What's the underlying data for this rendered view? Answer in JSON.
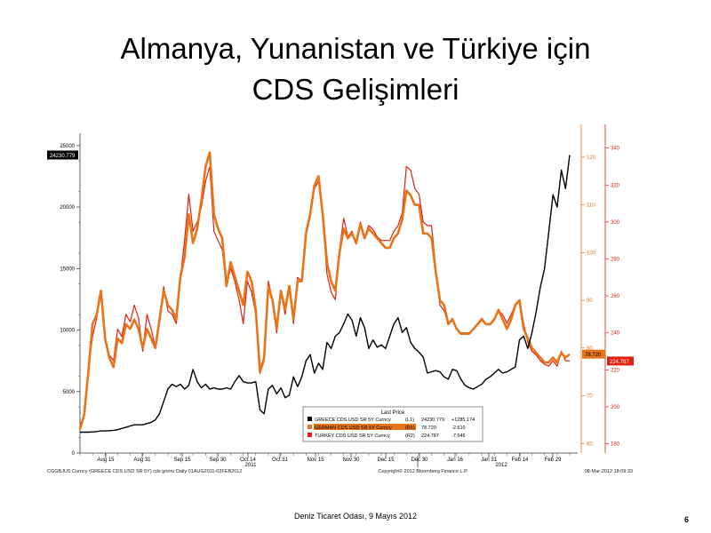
{
  "slide": {
    "title_line1": "Almanya, Yunanistan ve Türkiye için",
    "title_line2": "CDS Gelişimleri",
    "footer": "Deniz Ticaret Odası, 9 Mayıs 2012",
    "page_number": "6"
  },
  "chart_data": {
    "type": "line",
    "x_tick_labels": [
      "Aug 15",
      "Aug 31",
      "Sep 15",
      "Sep 30",
      "Oct 14",
      "Oct 31",
      "Nov 15",
      "Nov 30",
      "Dec 15",
      "Dec 30",
      "Jan 16",
      "Jan 31",
      "Feb 14",
      "Feb 29"
    ],
    "year_labels": [
      "2011",
      "2012"
    ],
    "axes": {
      "left": {
        "ylim": [
          0,
          26000
        ],
        "ticks": [
          0,
          5000,
          10000,
          15000,
          20000,
          25000
        ]
      },
      "right1": {
        "ylim": [
          58,
          125
        ],
        "ticks": [
          60,
          70,
          80,
          90,
          100,
          110,
          120
        ],
        "color": "#e8741a"
      },
      "right2": {
        "ylim": [
          175,
          348
        ],
        "ticks": [
          180,
          200,
          220,
          240,
          260,
          280,
          300,
          320,
          340
        ],
        "color": "#e02010"
      }
    },
    "legend": {
      "header": "Last Price",
      "rows": [
        {
          "name": "GREECE CDS USD SR 5Y Curncy",
          "axis": "(L1)",
          "last": "24230.779",
          "change": "+1285.174",
          "color": "#000000"
        },
        {
          "name": "GERMAN CDS USD SR 5Y Curncy",
          "axis": "(R1)",
          "last": "78.720",
          "change": "-2.610",
          "color": "#e8741a"
        },
        {
          "name": "TURKEY CDS USD SR 5Y Curncy",
          "axis": "(R2)",
          "last": "224.787",
          "change": "-7.546",
          "color": "#e02010"
        }
      ]
    },
    "last_value_tags": {
      "greece": "24230.779",
      "german": "78.720",
      "turkey": "224.787"
    },
    "bottom_left_caption": "CGGBJUS Curncy (GREECE CDS USD SR 5Y) cds goriru  Daily 01AUG2011-02FEB2012",
    "bottom_center_caption": "Copyright© 2012 Bloomberg Finance L.P.",
    "bottom_right_caption": "08-Mar-2012 18:09:33",
    "series": [
      {
        "name": "GREECE CDS USD SR 5Y Curncy",
        "axis": "left",
        "color": "#000000",
        "values": [
          1700,
          1700,
          1700,
          1720,
          1750,
          1800,
          1800,
          1820,
          1850,
          1900,
          2000,
          2100,
          2200,
          2300,
          2300,
          2300,
          2400,
          2500,
          2700,
          3200,
          4200,
          5200,
          5600,
          5400,
          5600,
          5200,
          5500,
          6800,
          5800,
          5300,
          5600,
          5200,
          5300,
          5200,
          5200,
          5300,
          5200,
          5800,
          6300,
          5800,
          5700,
          5700,
          5800,
          3500,
          3200,
          5200,
          5500,
          4800,
          5300,
          4500,
          4700,
          6200,
          5400,
          6200,
          7500,
          8000,
          6500,
          7300,
          6800,
          9000,
          8500,
          9500,
          9800,
          10500,
          11300,
          10800,
          9500,
          11000,
          10200,
          8500,
          9200,
          8600,
          8800,
          8500,
          9500,
          10500,
          11000,
          9800,
          10200,
          9000,
          8500,
          8200,
          7800,
          6500,
          6600,
          6700,
          6600,
          6200,
          6000,
          6800,
          6700,
          6000,
          5500,
          5300,
          5200,
          5400,
          5600,
          6000,
          6200,
          6500,
          6800,
          6500,
          6600,
          6800,
          7000,
          9200,
          9500,
          8500,
          9800,
          11500,
          13500,
          15000,
          18000,
          21000,
          20000,
          23000,
          21500,
          24230
        ]
      },
      {
        "name": "GERMAN CDS USD SR 5Y Curncy",
        "axis": "right1",
        "color": "#e8741a",
        "values": [
          63,
          66,
          75,
          85,
          87,
          92,
          82,
          78,
          76,
          82,
          81,
          85,
          84,
          86,
          84,
          80,
          84,
          82,
          80,
          86,
          92,
          89,
          88,
          86,
          95,
          99,
          108,
          102,
          105,
          111,
          118,
          121,
          108,
          105,
          103,
          93,
          98,
          95,
          92,
          89,
          96,
          94,
          88,
          75,
          78,
          93,
          90,
          84,
          92,
          88,
          93,
          86,
          94,
          94,
          104,
          108,
          114,
          116,
          108,
          98,
          94,
          92,
          100,
          105,
          103,
          104,
          102,
          106,
          103,
          105,
          104,
          103,
          102,
          101,
          101,
          103,
          104,
          107,
          113,
          112,
          110,
          110,
          104,
          104,
          103,
          96,
          90,
          89,
          85,
          86,
          84,
          83,
          83,
          83,
          84,
          85,
          86,
          85,
          85,
          86,
          88,
          86,
          84,
          86,
          89,
          90,
          84,
          82,
          80,
          79,
          78,
          77,
          77,
          78,
          77,
          79,
          78,
          78.7
        ]
      },
      {
        "name": "TURKEY CDS USD SR 5Y Curncy",
        "axis": "right2",
        "color": "#e02010",
        "values": [
          190,
          195,
          220,
          238,
          248,
          262,
          235,
          228,
          225,
          242,
          238,
          250,
          246,
          255,
          248,
          230,
          250,
          242,
          232,
          248,
          265,
          252,
          250,
          245,
          270,
          290,
          315,
          295,
          300,
          308,
          322,
          330,
          295,
          290,
          285,
          265,
          275,
          268,
          258,
          245,
          268,
          262,
          250,
          218,
          225,
          268,
          258,
          240,
          262,
          250,
          265,
          245,
          270,
          268,
          295,
          305,
          318,
          322,
          302,
          272,
          262,
          258,
          285,
          302,
          292,
          295,
          288,
          300,
          292,
          298,
          296,
          292,
          290,
          290,
          290,
          295,
          298,
          305,
          330,
          328,
          318,
          315,
          300,
          298,
          298,
          275,
          255,
          252,
          245,
          248,
          242,
          240,
          240,
          240,
          242,
          245,
          248,
          245,
          245,
          248,
          252,
          250,
          245,
          250,
          255,
          258,
          245,
          235,
          230,
          228,
          225,
          223,
          222,
          225,
          222,
          230,
          225,
          224.8
        ]
      }
    ]
  }
}
